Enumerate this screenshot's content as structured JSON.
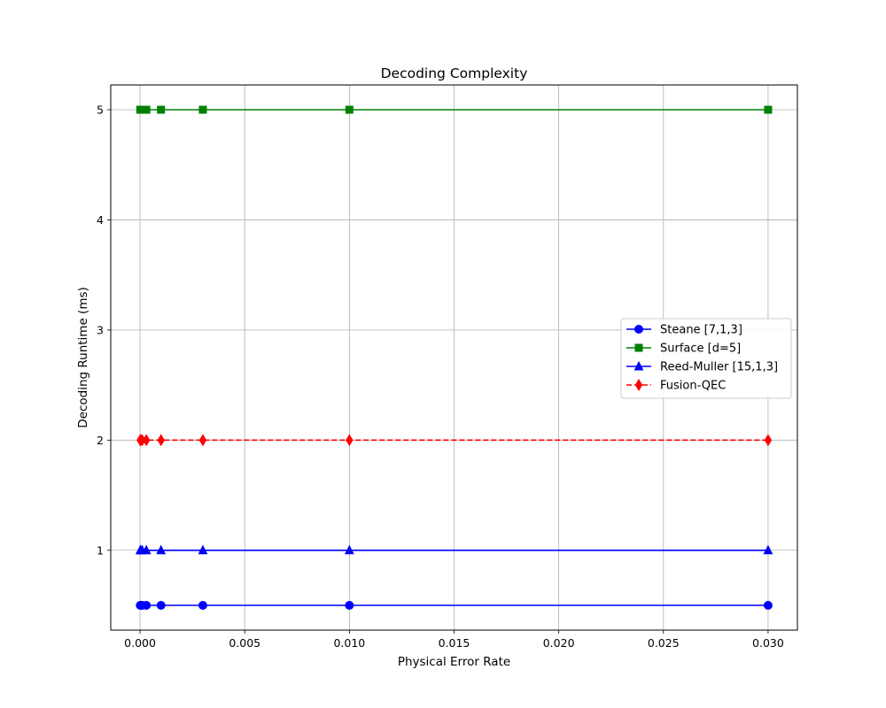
{
  "chart_data": {
    "type": "line",
    "title": "Decoding Complexity",
    "xlabel": "Physical Error Rate",
    "ylabel": "Decoding Runtime (ms)",
    "xlim": [
      -0.0014,
      0.0314
    ],
    "ylim": [
      0.275,
      5.225
    ],
    "xticks": [
      0.0,
      0.005,
      0.01,
      0.015,
      0.02,
      0.025,
      0.03
    ],
    "xtick_labels": [
      "0.000",
      "0.005",
      "0.010",
      "0.015",
      "0.020",
      "0.025",
      "0.030"
    ],
    "yticks": [
      1,
      2,
      3,
      4,
      5
    ],
    "ytick_labels": [
      "1",
      "2",
      "3",
      "4",
      "5"
    ],
    "grid": true,
    "legend_position": "center-right",
    "x": [
      1e-05,
      3e-05,
      0.0001,
      0.0003,
      0.001,
      0.003,
      0.01,
      0.03
    ],
    "series": [
      {
        "name": "Steane [7,1,3]",
        "values": [
          0.5,
          0.5,
          0.5,
          0.5,
          0.5,
          0.5,
          0.5,
          0.5
        ],
        "color": "#0000ff",
        "marker": "circle",
        "linestyle": "solid"
      },
      {
        "name": "Surface [d=5]",
        "values": [
          5,
          5,
          5,
          5,
          5,
          5,
          5,
          5
        ],
        "color": "#008000",
        "marker": "square",
        "linestyle": "solid"
      },
      {
        "name": "Reed-Muller [15,1,3]",
        "values": [
          1,
          1,
          1,
          1,
          1,
          1,
          1,
          1
        ],
        "color": "#0000ff",
        "marker": "triangle",
        "linestyle": "solid"
      },
      {
        "name": "Fusion-QEC",
        "values": [
          2,
          2,
          2,
          2,
          2,
          2,
          2,
          2
        ],
        "color": "#ff0000",
        "marker": "diamond",
        "linestyle": "dashed"
      }
    ]
  }
}
